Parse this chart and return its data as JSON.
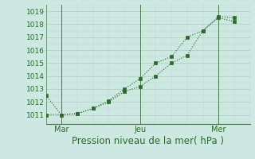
{
  "line1_x": [
    0,
    1,
    2,
    3,
    4,
    5,
    6,
    7,
    8,
    9,
    10,
    11,
    12
  ],
  "line1_y": [
    1012.5,
    1011.0,
    1011.1,
    1011.5,
    1012.0,
    1012.8,
    1013.2,
    1014.0,
    1015.0,
    1015.6,
    1017.5,
    1018.6,
    1018.5
  ],
  "line2_x": [
    0,
    2,
    3,
    4,
    5,
    6,
    7,
    8,
    9,
    10,
    11,
    12
  ],
  "line2_y": [
    1011.0,
    1011.1,
    1011.5,
    1012.1,
    1013.0,
    1013.8,
    1015.0,
    1015.5,
    1017.0,
    1017.5,
    1018.5,
    1018.2
  ],
  "xtick_positions": [
    1,
    6,
    11
  ],
  "xtick_labels": [
    "Mar",
    "Jeu",
    "Mer"
  ],
  "vline_positions": [
    1,
    6,
    11
  ],
  "ylim": [
    1010.3,
    1019.5
  ],
  "xlim": [
    0,
    13
  ],
  "ytick_start": 1011,
  "ytick_end": 1019,
  "line_color": "#2d6a2d",
  "bg_color": "#cce8e0",
  "grid_major_color": "#aaccc4",
  "grid_minor_color": "#bdd9d2",
  "xlabel": "Pression niveau de la mer( hPa )",
  "xlabel_color": "#2d6a2d",
  "xlabel_fontsize": 8.5,
  "tick_fontsize": 6.5,
  "xtick_fontsize": 7.0
}
